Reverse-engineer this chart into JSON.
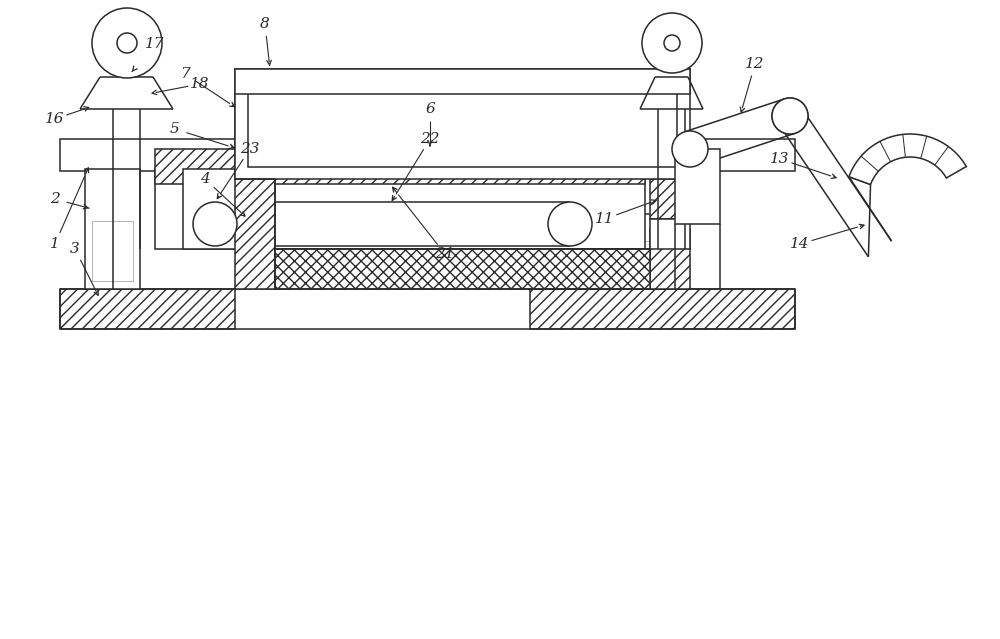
{
  "bg_color": "#ffffff",
  "lc": "#2a2a2a",
  "lw": 1.1,
  "figsize": [
    10.0,
    6.39
  ],
  "dpi": 100
}
